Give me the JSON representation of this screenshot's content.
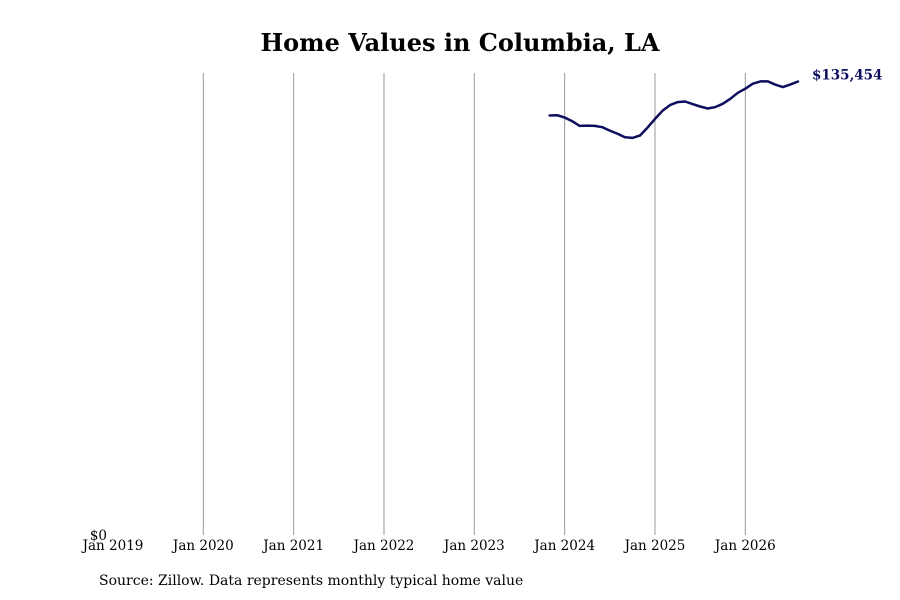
{
  "chart_data": {
    "type": "line",
    "title": "Home Values in Columbia, LA",
    "xlabel": "",
    "ylabel": "",
    "x_ticks": [
      "Jan 2019",
      "Jan 2020",
      "Jan 2021",
      "Jan 2022",
      "Jan 2023",
      "Jan 2024",
      "Jan 2025",
      "Jan 2026"
    ],
    "x_range": [
      "2019-01",
      "2026-08"
    ],
    "y_ticks": [
      {
        "value": 0,
        "label": "$0"
      }
    ],
    "ylim": [
      0,
      138000
    ],
    "grid": "vertical lines at each January",
    "series": [
      {
        "color": "#0d0f5e",
        "points": [
          [
            "2023-11",
            125300
          ],
          [
            "2023-12",
            125400
          ],
          [
            "2024-01",
            124700
          ],
          [
            "2024-02",
            123600
          ],
          [
            "2024-03",
            122200
          ],
          [
            "2024-04",
            122300
          ],
          [
            "2024-05",
            122200
          ],
          [
            "2024-06",
            121800
          ],
          [
            "2024-07",
            120800
          ],
          [
            "2024-08",
            119900
          ],
          [
            "2024-09",
            118800
          ],
          [
            "2024-10",
            118600
          ],
          [
            "2024-11",
            119300
          ],
          [
            "2024-12",
            121700
          ],
          [
            "2025-01",
            124300
          ],
          [
            "2025-02",
            126700
          ],
          [
            "2025-03",
            128400
          ],
          [
            "2025-04",
            129300
          ],
          [
            "2025-05",
            129500
          ],
          [
            "2025-06",
            128700
          ],
          [
            "2025-07",
            128000
          ],
          [
            "2025-08",
            127400
          ],
          [
            "2025-09",
            127800
          ],
          [
            "2025-10",
            128800
          ],
          [
            "2025-11",
            130300
          ],
          [
            "2025-12",
            132100
          ],
          [
            "2026-01",
            133300
          ],
          [
            "2026-02",
            134800
          ],
          [
            "2026-03",
            135500
          ],
          [
            "2026-04",
            135500
          ],
          [
            "2026-05",
            134500
          ],
          [
            "2026-06",
            133800
          ],
          [
            "2026-07",
            134600
          ],
          [
            "2026-08",
            135454
          ]
        ],
        "end_label": "$135,454"
      }
    ]
  },
  "source_note": "Source: Zillow. Data represents monthly typical home value"
}
